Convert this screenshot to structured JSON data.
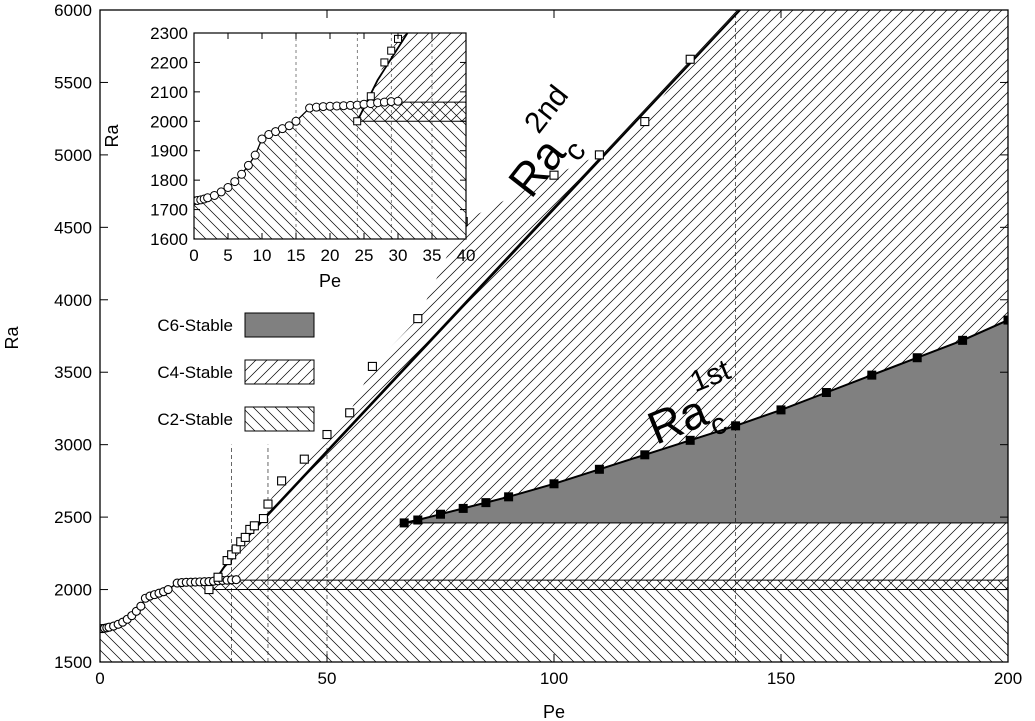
{
  "chart_data": {
    "type": "line",
    "main": {
      "xlabel": "Pe",
      "ylabel": "Ra",
      "xlim": [
        0,
        200
      ],
      "ylim": [
        1500,
        6000
      ],
      "xticks": [
        "0",
        "50",
        "100",
        "150",
        "200"
      ],
      "yticks": [
        "1500",
        "2000",
        "2500",
        "3000",
        "3500",
        "4000",
        "4500",
        "5000",
        "5500",
        "6000"
      ],
      "grid": false,
      "series": [
        {
          "name": "",
          "marker": "open-circle",
          "x": [
            0,
            0.5,
            1,
            1.5,
            2,
            3,
            4,
            5,
            6,
            7,
            8,
            9,
            10,
            11,
            12,
            13,
            14,
            15,
            17,
            18,
            19,
            20,
            21,
            22,
            23,
            24,
            25,
            26,
            27,
            28,
            29,
            30
          ],
          "y": [
            1730,
            1731,
            1733,
            1736,
            1740,
            1748,
            1760,
            1775,
            1795,
            1820,
            1850,
            1885,
            1940,
            1955,
            1965,
            1975,
            1985,
            2000,
            2045,
            2048,
            2050,
            2051,
            2052,
            2053,
            2054,
            2055,
            2058,
            2060,
            2063,
            2065,
            2067,
            2068
          ]
        },
        {
          "name": "",
          "marker": "open-square",
          "x": [
            24,
            26,
            28,
            29,
            30,
            31,
            32,
            33,
            34,
            36,
            37,
            40,
            45,
            50,
            55,
            60,
            70,
            80,
            100,
            110,
            120,
            130
          ],
          "y": [
            2000,
            2085,
            2200,
            2240,
            2280,
            2330,
            2360,
            2415,
            2440,
            2490,
            2590,
            2750,
            2900,
            3070,
            3220,
            3540,
            3870,
            4540,
            4860,
            5000,
            5230,
            5660
          ],
          "label": "Ra",
          "label_sub": "c",
          "label_sup": "2nd"
        },
        {
          "name": "",
          "marker": "filled-square",
          "x": [
            67,
            70,
            75,
            80,
            85,
            90,
            100,
            110,
            120,
            130,
            140,
            150,
            160,
            170,
            180,
            190,
            200
          ],
          "y": [
            2460,
            2480,
            2520,
            2560,
            2600,
            2640,
            2730,
            2830,
            2930,
            3030,
            3130,
            3240,
            3360,
            3480,
            3600,
            3720,
            3860
          ],
          "label": "Ra",
          "label_sub": "c",
          "label_sup": "1st"
        }
      ],
      "regions": [
        {
          "name": "C6-Stable",
          "fill": "#808080"
        },
        {
          "name": "C4-Stable",
          "fill": "diagonal-up-hatch"
        },
        {
          "name": "C2-Stable",
          "fill": "diagonal-down-hatch"
        }
      ],
      "legend_position": "left-middle"
    },
    "inset": {
      "xlabel": "Pe",
      "ylabel": "Ra",
      "xlim": [
        0,
        40
      ],
      "ylim": [
        1600,
        2300
      ],
      "xticks": [
        "0",
        "5",
        "10",
        "15",
        "20",
        "25",
        "30",
        "35",
        "40"
      ],
      "yticks": [
        "1600",
        "1700",
        "1800",
        "1900",
        "2000",
        "2100",
        "2200",
        "2300"
      ]
    }
  },
  "colors": {
    "background": "#ffffff",
    "c6_fill": "#808080",
    "line": "#000000"
  }
}
